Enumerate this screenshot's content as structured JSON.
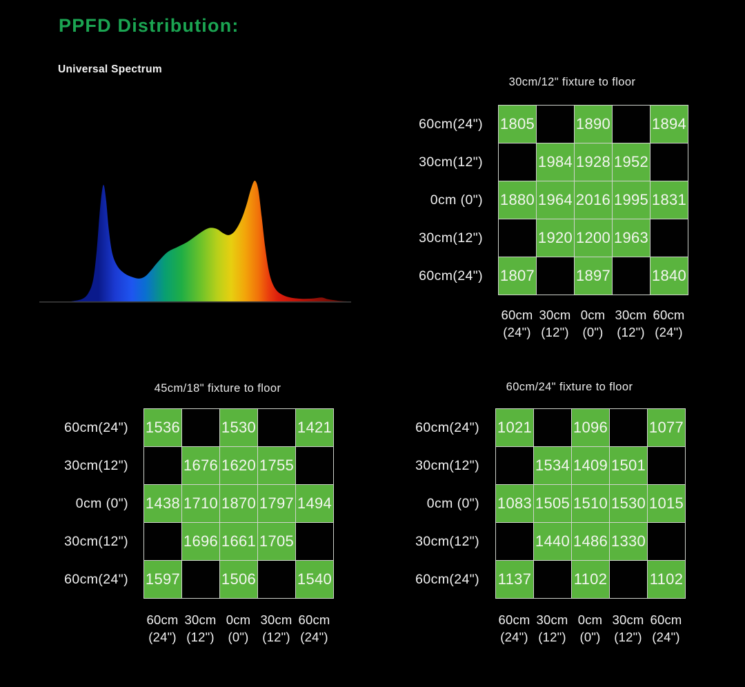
{
  "page": {
    "title": "PPFD Distribution:"
  },
  "colors": {
    "background": "#000000",
    "accent_green": "#1ba552",
    "cell_green": "#5ab43e",
    "grid_line": "#cfd3cc",
    "label_text": "#f2f2f2"
  },
  "chart_data": [
    {
      "type": "area",
      "title": "Universal Spectrum",
      "xlabel": "",
      "ylabel": "",
      "axes_visible": false,
      "legend": false,
      "description": "LED spectral power distribution curve with rainbow gradient fill: sharp blue peak, valley, broad green-yellow-orange hump, tall red peak, far-red tail over a thin gray baseline",
      "points": [
        [
          0.115,
          0
        ],
        [
          0.15,
          0.02
        ],
        [
          0.17,
          0.07
        ],
        [
          0.185,
          0.18
        ],
        [
          0.196,
          0.42
        ],
        [
          0.205,
          0.72
        ],
        [
          0.213,
          0.92
        ],
        [
          0.219,
          0.96
        ],
        [
          0.226,
          0.83
        ],
        [
          0.234,
          0.6
        ],
        [
          0.245,
          0.4
        ],
        [
          0.262,
          0.29
        ],
        [
          0.285,
          0.23
        ],
        [
          0.31,
          0.2
        ],
        [
          0.332,
          0.19
        ],
        [
          0.35,
          0.21
        ],
        [
          0.368,
          0.26
        ],
        [
          0.39,
          0.33
        ],
        [
          0.42,
          0.41
        ],
        [
          0.45,
          0.45
        ],
        [
          0.48,
          0.49
        ],
        [
          0.51,
          0.545
        ],
        [
          0.535,
          0.59
        ],
        [
          0.555,
          0.61
        ],
        [
          0.575,
          0.6
        ],
        [
          0.595,
          0.565
        ],
        [
          0.613,
          0.55
        ],
        [
          0.632,
          0.585
        ],
        [
          0.652,
          0.68
        ],
        [
          0.668,
          0.8
        ],
        [
          0.682,
          0.93
        ],
        [
          0.694,
          1
        ],
        [
          0.705,
          0.93
        ],
        [
          0.716,
          0.7
        ],
        [
          0.727,
          0.45
        ],
        [
          0.738,
          0.26
        ],
        [
          0.75,
          0.15
        ],
        [
          0.765,
          0.085
        ],
        [
          0.785,
          0.05
        ],
        [
          0.81,
          0.03
        ],
        [
          0.845,
          0.022
        ],
        [
          0.88,
          0.025
        ],
        [
          0.905,
          0.032
        ],
        [
          0.925,
          0.018
        ],
        [
          0.955,
          0.006
        ],
        [
          0.985,
          0
        ]
      ]
    },
    {
      "type": "table",
      "title": "30cm/12\" fixture to floor",
      "row_labels": [
        "60cm(24\")",
        "30cm(12\")",
        "0cm (0\")",
        "30cm(12\")",
        "60cm(24\")"
      ],
      "col_labels_line1": [
        "60cm",
        "30cm",
        "0cm",
        "30cm",
        "60cm"
      ],
      "col_labels_line2": [
        "(24\")",
        "(12\")",
        "(0\")",
        "(12\")",
        "(24\")"
      ],
      "values": [
        [
          1805,
          null,
          1890,
          null,
          1894
        ],
        [
          null,
          1984,
          1928,
          1952,
          null
        ],
        [
          1880,
          1964,
          2016,
          1995,
          1831
        ],
        [
          null,
          1920,
          1200,
          1963,
          null
        ],
        [
          1807,
          null,
          1897,
          null,
          1840
        ]
      ]
    },
    {
      "type": "table",
      "title": "45cm/18\" fixture to floor",
      "row_labels": [
        "60cm(24\")",
        "30cm(12\")",
        "0cm (0\")",
        "30cm(12\")",
        "60cm(24\")"
      ],
      "col_labels_line1": [
        "60cm",
        "30cm",
        "0cm",
        "30cm",
        "60cm"
      ],
      "col_labels_line2": [
        "(24\")",
        "(12\")",
        "(0\")",
        "(12\")",
        "(24\")"
      ],
      "values": [
        [
          1536,
          null,
          1530,
          null,
          1421
        ],
        [
          null,
          1676,
          1620,
          1755,
          null
        ],
        [
          1438,
          1710,
          1870,
          1797,
          1494
        ],
        [
          null,
          1696,
          1661,
          1705,
          null
        ],
        [
          1597,
          null,
          1506,
          null,
          1540
        ]
      ]
    },
    {
      "type": "table",
      "title": "60cm/24\" fixture to floor",
      "row_labels": [
        "60cm(24\")",
        "30cm(12\")",
        "0cm (0\")",
        "30cm(12\")",
        "60cm(24\")"
      ],
      "col_labels_line1": [
        "60cm",
        "30cm",
        "0cm",
        "30cm",
        "60cm"
      ],
      "col_labels_line2": [
        "(24\")",
        "(12\")",
        "(0\")",
        "(12\")",
        "(24\")"
      ],
      "values": [
        [
          1021,
          null,
          1096,
          null,
          1077
        ],
        [
          null,
          1534,
          1409,
          1501,
          null
        ],
        [
          1083,
          1505,
          1510,
          1530,
          1015
        ],
        [
          null,
          1440,
          1486,
          1330,
          null
        ],
        [
          1137,
          null,
          1102,
          null,
          1102
        ]
      ]
    }
  ]
}
